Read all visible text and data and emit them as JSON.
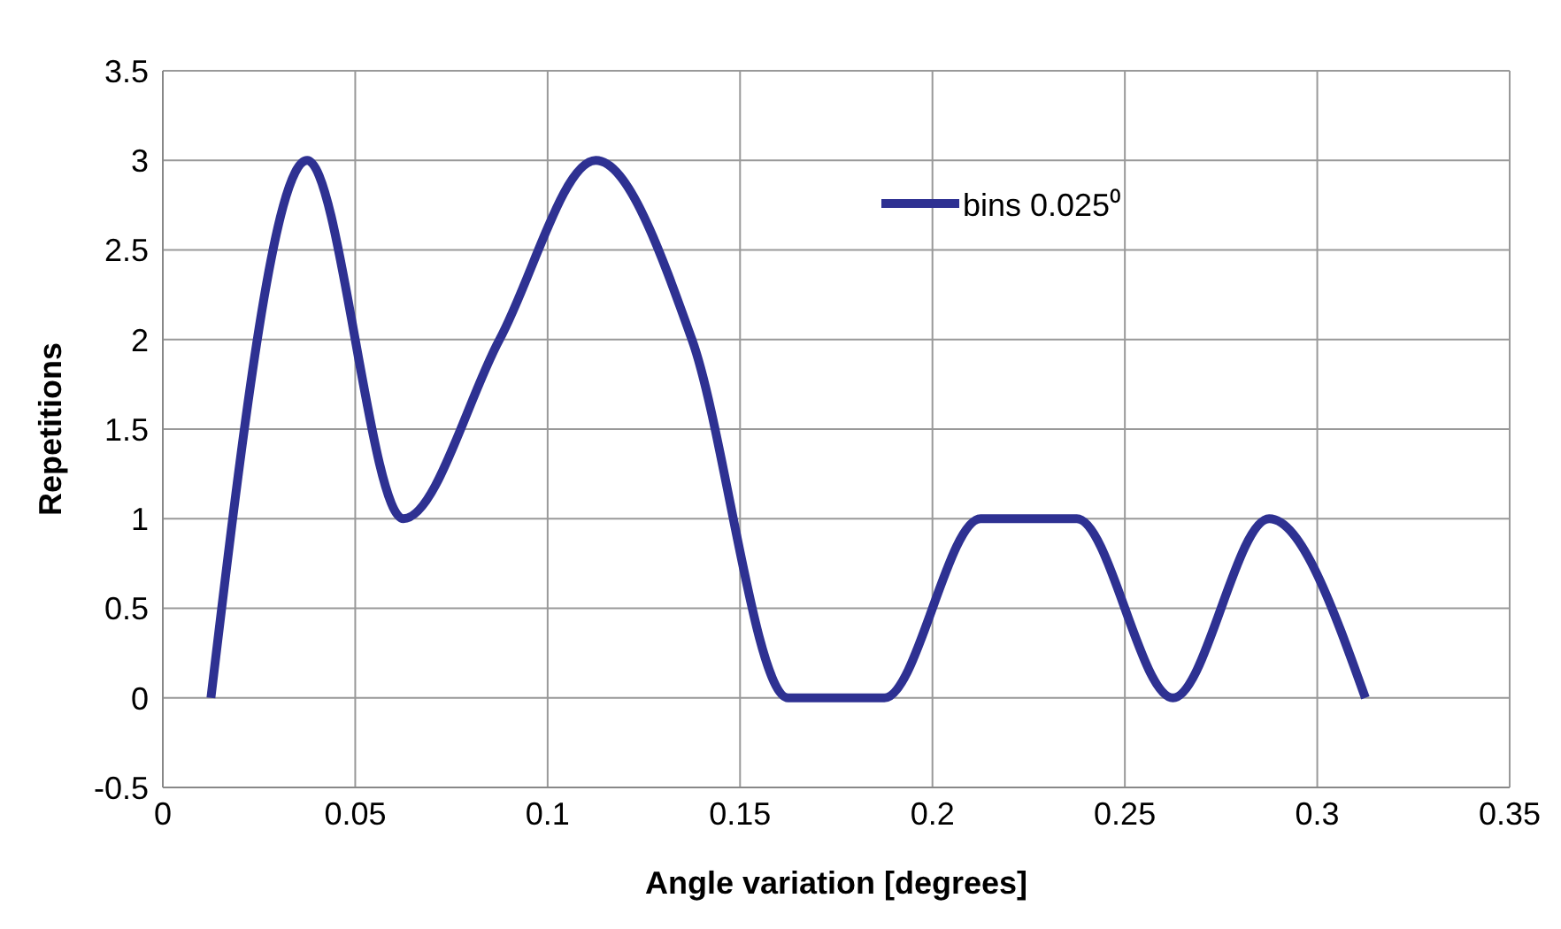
{
  "chart_data": {
    "type": "line",
    "xlabel": "Angle variation [degrees]",
    "ylabel": "Repetitions",
    "x": [
      0.0125,
      0.0375,
      0.0625,
      0.0875,
      0.1125,
      0.1375,
      0.1625,
      0.1875,
      0.2125,
      0.2375,
      0.2625,
      0.2875,
      0.3125
    ],
    "series": [
      {
        "name": "bins 0.025⁰",
        "color": "#2e3192",
        "values": [
          0,
          3,
          1,
          2,
          3,
          2,
          0,
          0,
          1,
          1,
          0,
          1,
          0
        ]
      }
    ],
    "xlim": [
      0,
      0.35
    ],
    "xticks": [
      0,
      0.05,
      0.1,
      0.15,
      0.2,
      0.25,
      0.3,
      0.35
    ],
    "ylim": [
      -0.5,
      3.5
    ],
    "yticks": [
      -0.5,
      0,
      0.5,
      1,
      1.5,
      2,
      2.5,
      3,
      3.5
    ],
    "grid": true,
    "legend": "top right",
    "marker": "none",
    "line_style": "solid"
  }
}
